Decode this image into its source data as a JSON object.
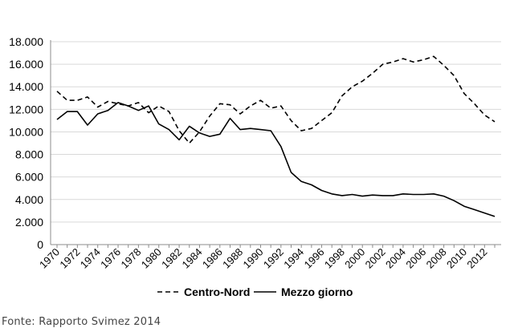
{
  "chart_data": {
    "type": "line",
    "ylim": [
      0,
      18000
    ],
    "yticks": [
      "0",
      "2.000",
      "4.000",
      "6.000",
      "8.000",
      "10.000",
      "12.000",
      "14.000",
      "16.000",
      "18.000"
    ],
    "xticks": [
      "1970",
      "1972",
      "1974",
      "1976",
      "1978",
      "1980",
      "1982",
      "1984",
      "1986",
      "1988",
      "1990",
      "1992",
      "1994",
      "1996",
      "1998",
      "2000",
      "2002",
      "2004",
      "2006",
      "2008",
      "2010",
      "2012"
    ],
    "x": [
      1970,
      1971,
      1972,
      1973,
      1974,
      1975,
      1976,
      1977,
      1978,
      1979,
      1980,
      1981,
      1982,
      1983,
      1984,
      1985,
      1986,
      1987,
      1988,
      1989,
      1990,
      1991,
      1992,
      1993,
      1994,
      1995,
      1996,
      1997,
      1998,
      1999,
      2000,
      2001,
      2002,
      2003,
      2004,
      2005,
      2006,
      2007,
      2008,
      2009,
      2010,
      2011,
      2012,
      2013
    ],
    "grid": "horizontal",
    "legend_position": "bottom",
    "series": [
      {
        "name": "Centro-Nord",
        "style": "dashed",
        "color": "#000000",
        "values": [
          13600,
          12800,
          12800,
          13100,
          12200,
          12700,
          12500,
          12300,
          12600,
          11700,
          12300,
          11800,
          10100,
          9000,
          10000,
          11400,
          12500,
          12400,
          11600,
          12300,
          12800,
          12100,
          12300,
          11000,
          10100,
          10300,
          11000,
          11700,
          13200,
          14000,
          14500,
          15200,
          16000,
          16200,
          16500,
          16200,
          16400,
          16700,
          15900,
          15000,
          13400,
          12500,
          11500,
          10900
        ]
      },
      {
        "name": "Mezzo giorno",
        "style": "solid",
        "color": "#000000",
        "values": [
          11100,
          11800,
          11800,
          10600,
          11600,
          11900,
          12600,
          12300,
          11900,
          12300,
          10700,
          10200,
          9300,
          10500,
          9900,
          9600,
          9800,
          11200,
          10200,
          10300,
          10200,
          10100,
          8700,
          6400,
          5600,
          5300,
          4800,
          4500,
          4350,
          4450,
          4300,
          4400,
          4350,
          4350,
          4500,
          4450,
          4450,
          4500,
          4300,
          3900,
          3400,
          3100,
          2800,
          2500
        ]
      }
    ]
  },
  "source_note": "Fonte: Rapporto Svimez 2014"
}
